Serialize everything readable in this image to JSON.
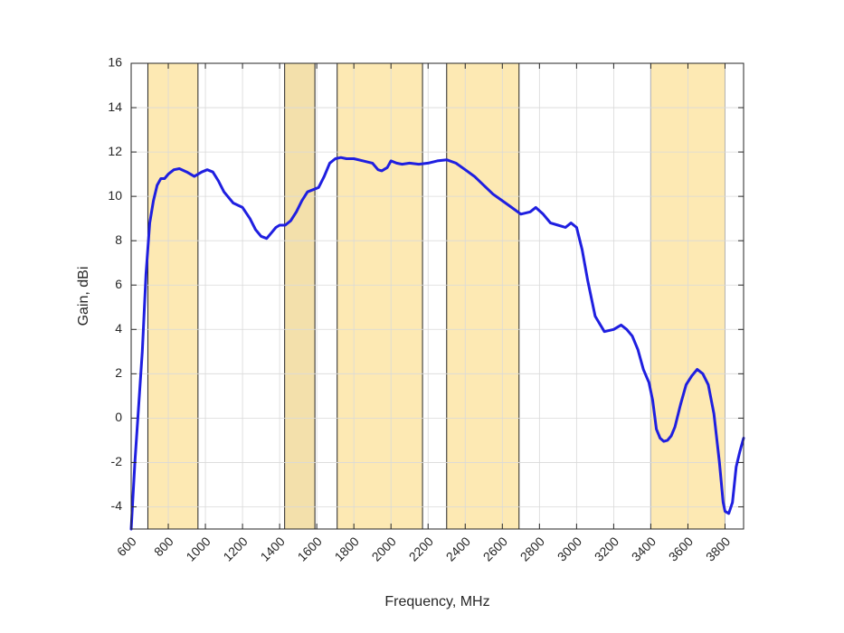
{
  "chart_data": {
    "type": "line",
    "title": "",
    "xlabel": "Frequency, MHz",
    "ylabel": "Gain, dBi",
    "xlim": [
      600,
      3900
    ],
    "ylim": [
      -5,
      16
    ],
    "grid": true,
    "xticks": [
      600,
      800,
      1000,
      1200,
      1400,
      1600,
      1800,
      2000,
      2200,
      2400,
      2600,
      2800,
      3000,
      3200,
      3400,
      3600,
      3800
    ],
    "yticks": [
      -4,
      -2,
      0,
      2,
      4,
      6,
      8,
      10,
      12,
      14,
      16
    ],
    "bands": [
      {
        "from": 690,
        "to": 960,
        "color": "#fde9b3"
      },
      {
        "from": 1427,
        "to": 1590,
        "color": "#f3e0ab"
      },
      {
        "from": 1710,
        "to": 2170,
        "color": "#fde9b3"
      },
      {
        "from": 2300,
        "to": 2690,
        "color": "#fde9b3"
      },
      {
        "from": 3400,
        "to": 3800,
        "color": "#fde9b3"
      }
    ],
    "series": [
      {
        "color": "#1f1fe0",
        "x": [
          600,
          620,
          640,
          660,
          680,
          700,
          720,
          740,
          760,
          780,
          800,
          830,
          860,
          900,
          940,
          980,
          1010,
          1040,
          1070,
          1100,
          1150,
          1200,
          1240,
          1270,
          1300,
          1330,
          1360,
          1380,
          1400,
          1430,
          1460,
          1490,
          1520,
          1550,
          1580,
          1610,
          1640,
          1670,
          1700,
          1730,
          1760,
          1800,
          1850,
          1900,
          1930,
          1950,
          1980,
          2000,
          2030,
          2060,
          2100,
          2150,
          2200,
          2250,
          2300,
          2350,
          2400,
          2450,
          2500,
          2550,
          2600,
          2650,
          2700,
          2750,
          2780,
          2820,
          2860,
          2900,
          2940,
          2970,
          3000,
          3030,
          3060,
          3100,
          3150,
          3200,
          3240,
          3270,
          3300,
          3330,
          3360,
          3390,
          3410,
          3430,
          3450,
          3470,
          3490,
          3510,
          3530,
          3560,
          3590,
          3620,
          3650,
          3680,
          3710,
          3740,
          3770,
          3790,
          3800,
          3820,
          3840,
          3860,
          3880,
          3900
        ],
        "y": [
          -5,
          -2,
          0.5,
          3,
          6.5,
          8.8,
          9.8,
          10.5,
          10.8,
          10.8,
          11.0,
          11.2,
          11.25,
          11.1,
          10.9,
          11.1,
          11.2,
          11.1,
          10.7,
          10.2,
          9.7,
          9.5,
          9.0,
          8.5,
          8.2,
          8.1,
          8.4,
          8.6,
          8.7,
          8.7,
          8.9,
          9.3,
          9.8,
          10.2,
          10.3,
          10.4,
          10.9,
          11.5,
          11.7,
          11.75,
          11.7,
          11.7,
          11.6,
          11.5,
          11.2,
          11.15,
          11.3,
          11.6,
          11.5,
          11.45,
          11.5,
          11.45,
          11.5,
          11.6,
          11.65,
          11.5,
          11.2,
          10.9,
          10.5,
          10.1,
          9.8,
          9.5,
          9.2,
          9.3,
          9.5,
          9.2,
          8.8,
          8.7,
          8.6,
          8.8,
          8.6,
          7.6,
          6.2,
          4.6,
          3.9,
          4.0,
          4.2,
          4.0,
          3.7,
          3.1,
          2.2,
          1.6,
          0.8,
          -0.5,
          -0.9,
          -1.05,
          -1.0,
          -0.8,
          -0.4,
          0.6,
          1.5,
          1.9,
          2.2,
          2.0,
          1.5,
          0.2,
          -2.0,
          -3.8,
          -4.2,
          -4.3,
          -3.8,
          -2.2,
          -1.5,
          -0.9
        ]
      }
    ]
  }
}
